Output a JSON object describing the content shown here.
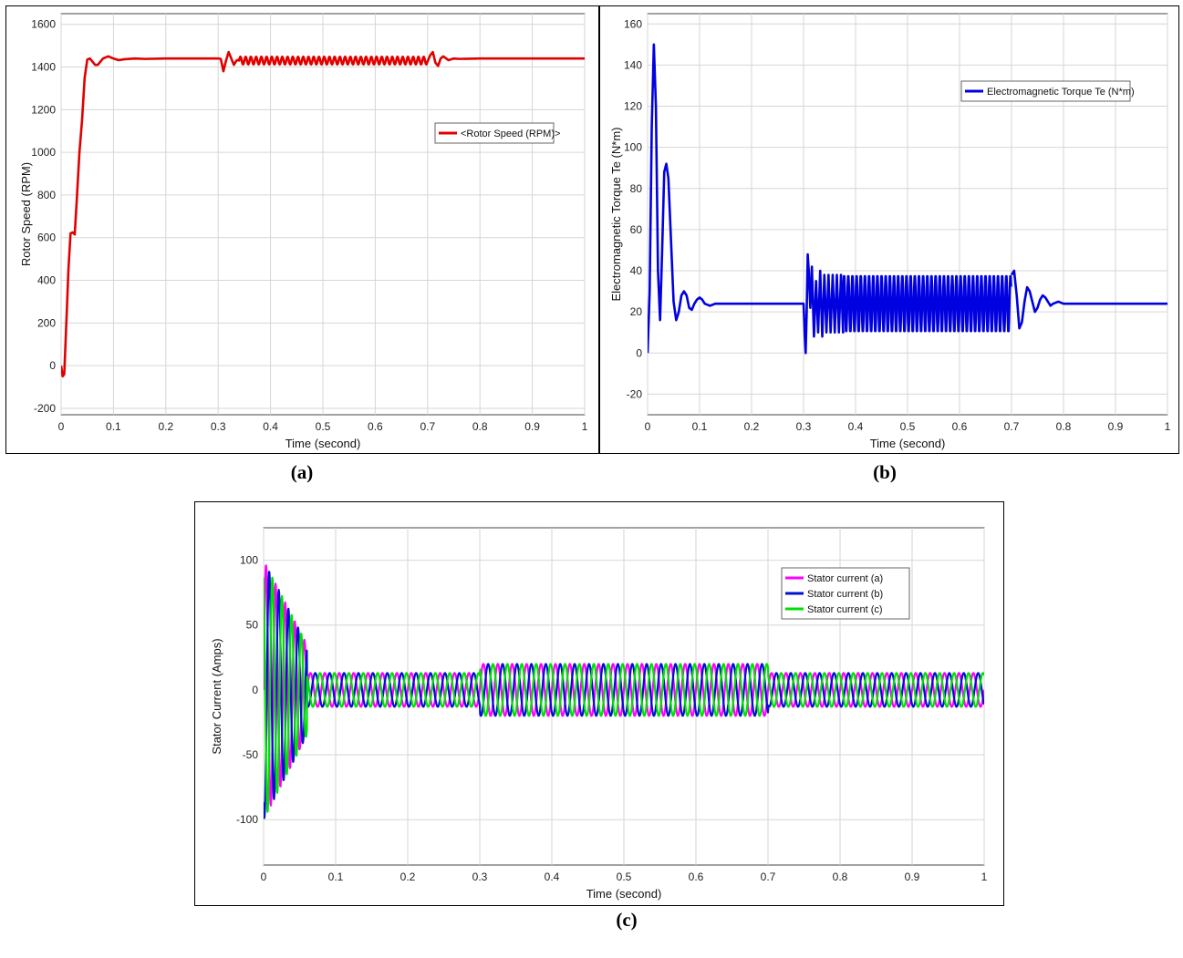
{
  "colors": {
    "rotor_speed": "#e00000",
    "torque": "#0000e0",
    "stator_a": "#ff00ff",
    "stator_b": "#0010d0",
    "stator_c": "#00e000",
    "grid": "#d6d6d6",
    "plot_bg": "#ffffff"
  },
  "captions": {
    "a": "(a)",
    "b": "(b)",
    "c": "(c)"
  },
  "chart_data": [
    {
      "id": "a",
      "type": "line",
      "xlabel": "Time (second)",
      "ylabel": "Rotor Speed (RPM)",
      "xlim": [
        0,
        1
      ],
      "ylim": [
        -230,
        1650
      ],
      "xticks": [
        0,
        0.1,
        0.2,
        0.3,
        0.4,
        0.5,
        0.6,
        0.7,
        0.8,
        0.9,
        1
      ],
      "yticks": [
        -200,
        0,
        200,
        400,
        600,
        800,
        1000,
        1200,
        1400,
        1600
      ],
      "grid": true,
      "legend_position": "right-middle",
      "series": [
        {
          "name": "<Rotor Speed (RPM)>",
          "color_key": "rotor_speed",
          "x": [
            0,
            0.003,
            0.006,
            0.01,
            0.014,
            0.018,
            0.022,
            0.026,
            0.03,
            0.035,
            0.04,
            0.045,
            0.05,
            0.055,
            0.06,
            0.065,
            0.07,
            0.075,
            0.08,
            0.09,
            0.1,
            0.11,
            0.12,
            0.14,
            0.16,
            0.2,
            0.25,
            0.3,
            0.305,
            0.31,
            0.315,
            0.32,
            0.325,
            0.33,
            0.335,
            0.34,
            0.35,
            0.36,
            0.7,
            0.705,
            0.71,
            0.715,
            0.72,
            0.725,
            0.73,
            0.74,
            0.75,
            0.76,
            0.8,
            1.0
          ],
          "y": [
            0,
            -50,
            -40,
            200,
            450,
            620,
            625,
            615,
            780,
            1000,
            1150,
            1350,
            1435,
            1440,
            1425,
            1410,
            1410,
            1425,
            1440,
            1450,
            1440,
            1432,
            1436,
            1440,
            1438,
            1440,
            1440,
            1440,
            1438,
            1380,
            1430,
            1470,
            1440,
            1410,
            1430,
            1435,
            1420,
            1440,
            1440,
            1455,
            1470,
            1420,
            1405,
            1440,
            1450,
            1432,
            1440,
            1438,
            1440,
            1440
          ]
        }
      ],
      "oscillation": {
        "start": 0.34,
        "end": 0.7,
        "center": 1430,
        "amplitude": 18,
        "frequency": 100,
        "series_index": 0
      }
    },
    {
      "id": "b",
      "type": "line",
      "xlabel": "Time (second)",
      "ylabel": "Electromagnetic Torque Te (N*m)",
      "xlim": [
        0,
        1
      ],
      "ylim": [
        -30,
        165
      ],
      "xticks": [
        0,
        0.1,
        0.2,
        0.3,
        0.4,
        0.5,
        0.6,
        0.7,
        0.8,
        0.9,
        1
      ],
      "yticks": [
        -20,
        0,
        20,
        40,
        60,
        80,
        100,
        120,
        140,
        160
      ],
      "grid": true,
      "legend_position": "top-right",
      "series": [
        {
          "name": "Electromagnetic Torque Te (N*m)",
          "color_key": "torque",
          "x": [
            0,
            0.004,
            0.008,
            0.012,
            0.016,
            0.02,
            0.024,
            0.028,
            0.032,
            0.036,
            0.04,
            0.045,
            0.05,
            0.055,
            0.06,
            0.065,
            0.07,
            0.075,
            0.08,
            0.085,
            0.09,
            0.095,
            0.1,
            0.105,
            0.11,
            0.12,
            0.13,
            0.15,
            0.2,
            0.25,
            0.3,
            0.302,
            0.304,
            0.306,
            0.308,
            0.31,
            0.313,
            0.316,
            0.32,
            0.324,
            0.328,
            0.332,
            0.336,
            0.34,
            0.344,
            0.348,
            0.352,
            0.356,
            0.36,
            0.364,
            0.368,
            0.372,
            0.376
          ],
          "y": [
            0,
            30,
            110,
            150,
            120,
            40,
            16,
            50,
            88,
            92,
            85,
            55,
            25,
            16,
            20,
            28,
            30,
            28,
            22,
            21,
            24,
            26,
            27,
            26,
            24,
            23,
            24,
            24,
            24,
            24,
            24,
            10,
            0,
            20,
            48,
            40,
            22,
            42,
            8,
            35,
            10,
            40,
            8,
            38,
            10,
            38,
            10,
            38,
            10,
            38,
            10,
            38,
            10
          ]
        },
        {
          "name": "",
          "color_key": "torque",
          "x": [
            0.7,
            0.705,
            0.71,
            0.715,
            0.72,
            0.725,
            0.73,
            0.735,
            0.74,
            0.745,
            0.75,
            0.755,
            0.76,
            0.765,
            0.77,
            0.775,
            0.78,
            0.79,
            0.8,
            0.85,
            1.0
          ],
          "y": [
            38,
            40,
            28,
            12,
            15,
            25,
            32,
            30,
            25,
            20,
            22,
            26,
            28,
            27,
            25,
            23,
            24,
            25,
            24,
            24,
            24
          ]
        }
      ],
      "oscillation": {
        "start": 0.376,
        "end": 0.7,
        "center": 24,
        "amplitude": 14,
        "frequency": 125,
        "series_index": 0
      }
    },
    {
      "id": "c",
      "type": "line",
      "xlabel": "Time (second)",
      "ylabel": "Stator Current (Amps)",
      "xlim": [
        0,
        1
      ],
      "ylim": [
        -135,
        125
      ],
      "xticks": [
        0,
        0.1,
        0.2,
        0.3,
        0.4,
        0.5,
        0.6,
        0.7,
        0.8,
        0.9,
        1
      ],
      "yticks": [
        -100,
        -50,
        0,
        50,
        100
      ],
      "grid": true,
      "legend_position": "top-right",
      "frequency_hz": 50,
      "segments": [
        {
          "start": 0,
          "end": 0.06,
          "amplitude": 100,
          "decay": 0.65,
          "frequency": 75
        },
        {
          "start": 0.06,
          "end": 0.3,
          "amplitude": 13
        },
        {
          "start": 0.3,
          "end": 0.7,
          "amplitude": 20
        },
        {
          "start": 0.7,
          "end": 1.0,
          "amplitude": 13
        }
      ],
      "series": [
        {
          "name": "Stator current (a)",
          "color_key": "stator_a",
          "phase_deg": 0
        },
        {
          "name": "Stator current (b)",
          "color_key": "stator_b",
          "phase_deg": -120
        },
        {
          "name": "Stator current (c)",
          "color_key": "stator_c",
          "phase_deg": 120
        }
      ]
    }
  ]
}
